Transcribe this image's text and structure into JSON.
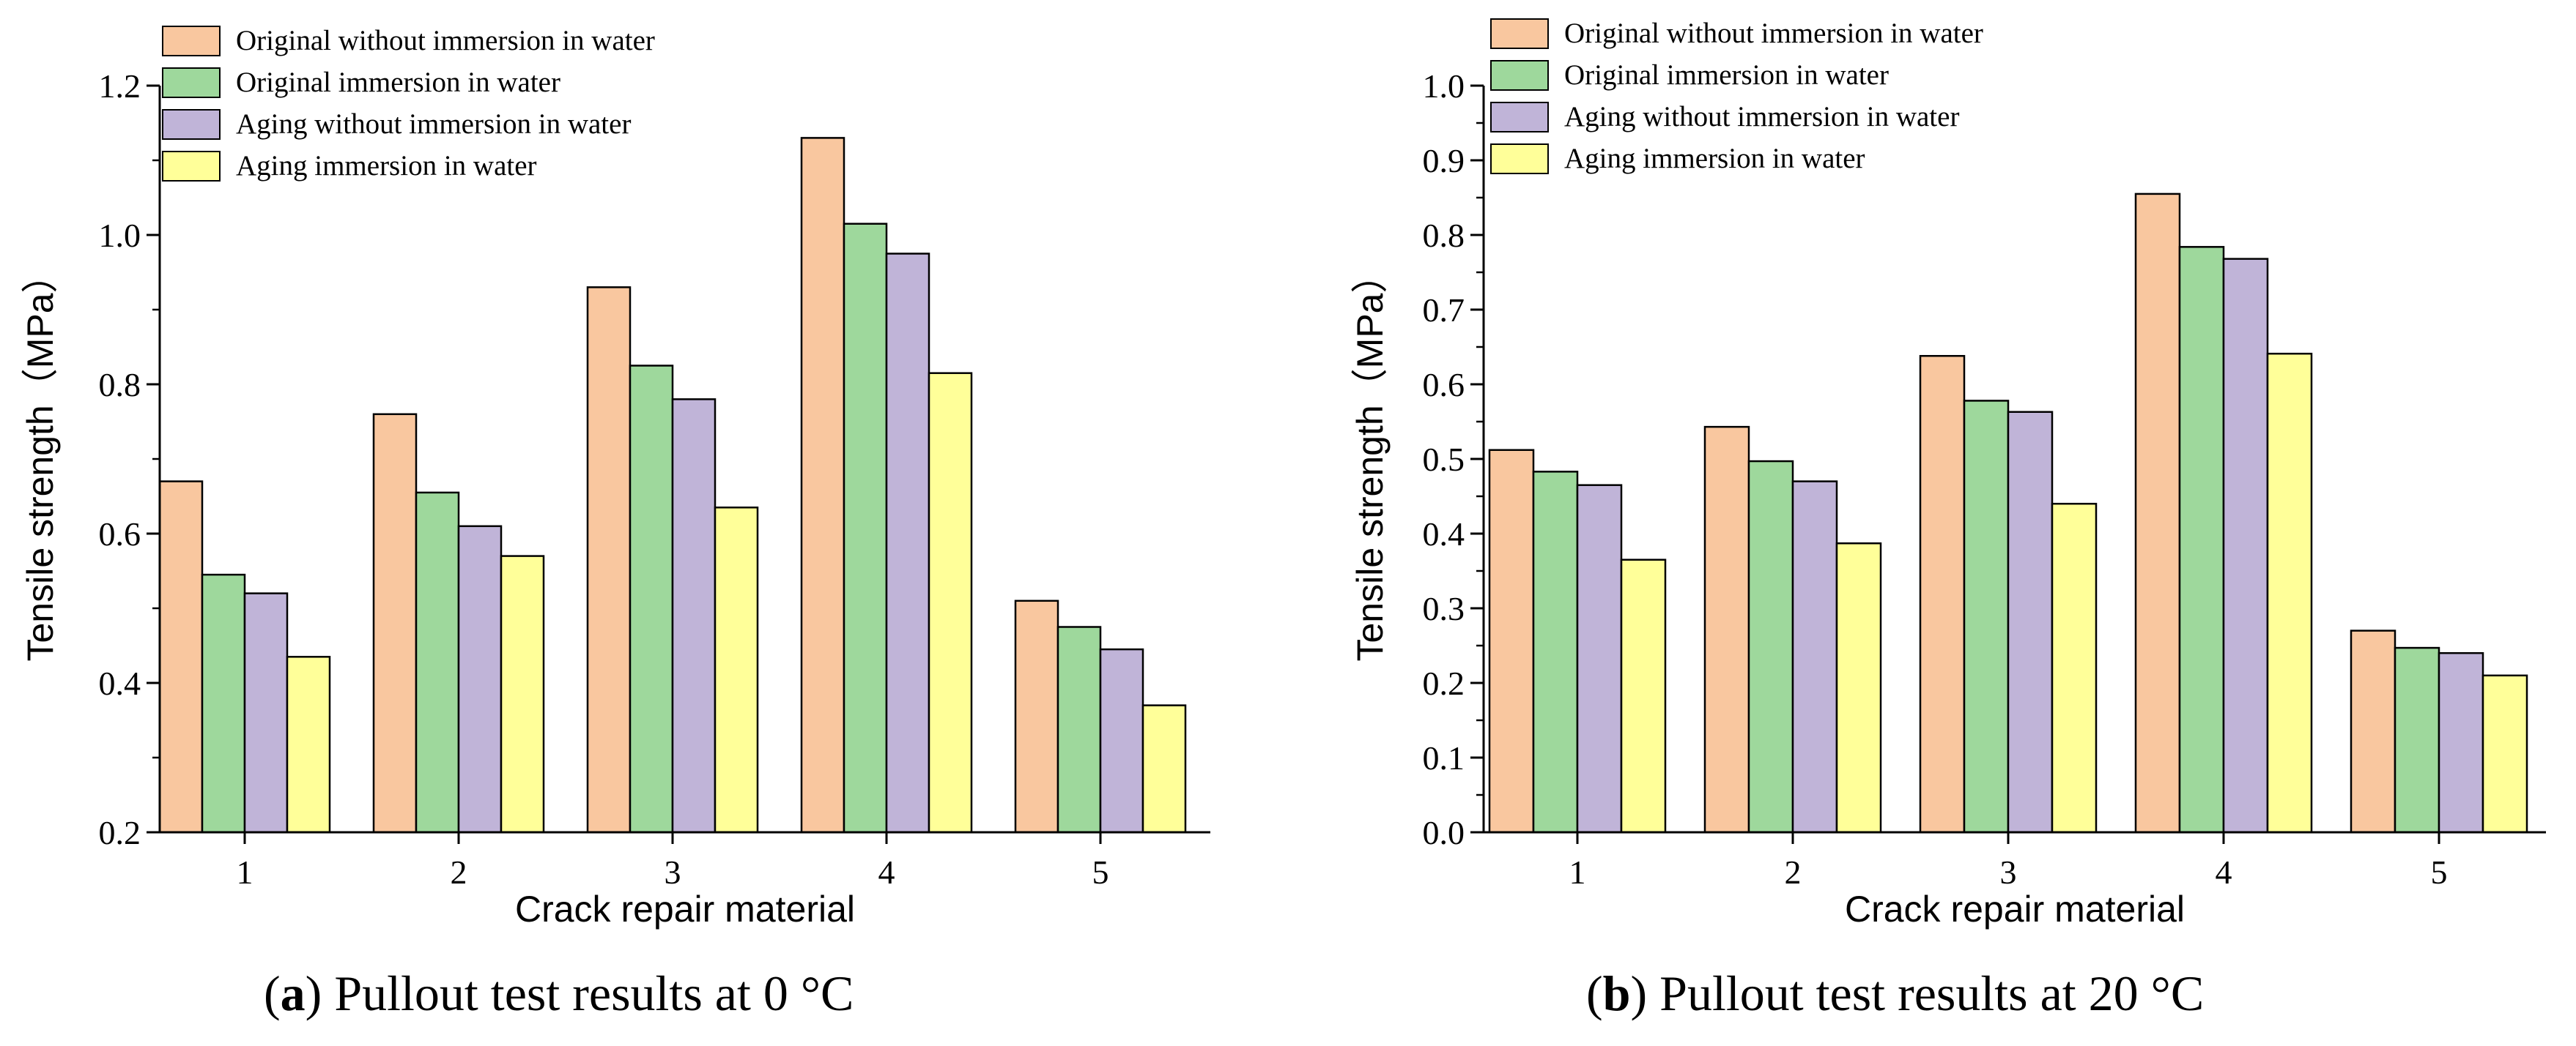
{
  "series_meta": [
    {
      "name": "Original without immersion in water",
      "color": "#F9C79F"
    },
    {
      "name": "Original immersion in water",
      "color": "#9ED89C"
    },
    {
      "name": "Aging without immersion in water",
      "color": "#C0B4D8"
    },
    {
      "name": "Aging immersion in water",
      "color": "#FFFF99"
    }
  ],
  "captions": [
    {
      "letter": "a",
      "text": "Pullout test results at 0 °C"
    },
    {
      "letter": "b",
      "text": "Pullout test results at 20 °C"
    }
  ],
  "chart_data": [
    {
      "type": "bar",
      "title": "",
      "xlabel": "Crack repair material",
      "ylabel": "Tensile strength（MPa）",
      "categories": [
        "1",
        "2",
        "3",
        "4",
        "5"
      ],
      "ylim": [
        0.2,
        1.2
      ],
      "yticks": [
        "0.2",
        "0.4",
        "0.6",
        "0.8",
        "1.0",
        "1.2"
      ],
      "ytick_values": [
        0.2,
        0.4,
        0.6,
        0.8,
        1.0,
        1.2
      ],
      "legend_position": "top-left",
      "series": [
        {
          "name": "Original without immersion in water",
          "values": [
            0.67,
            0.76,
            0.93,
            1.13,
            0.51
          ]
        },
        {
          "name": "Original immersion in water",
          "values": [
            0.545,
            0.655,
            0.825,
            1.015,
            0.475
          ]
        },
        {
          "name": "Aging without immersion in water",
          "values": [
            0.52,
            0.61,
            0.78,
            0.975,
            0.445
          ]
        },
        {
          "name": "Aging immersion in water",
          "values": [
            0.435,
            0.57,
            0.635,
            0.815,
            0.37
          ]
        }
      ]
    },
    {
      "type": "bar",
      "title": "",
      "xlabel": "Crack repair material",
      "ylabel": "Tensile strength（MPa）",
      "categories": [
        "1",
        "2",
        "3",
        "4",
        "5"
      ],
      "ylim": [
        0.0,
        1.0
      ],
      "yticks": [
        "0.0",
        "0.1",
        "0.2",
        "0.3",
        "0.4",
        "0.5",
        "0.6",
        "0.7",
        "0.8",
        "0.9",
        "1.0"
      ],
      "ytick_values": [
        0.0,
        0.1,
        0.2,
        0.3,
        0.4,
        0.5,
        0.6,
        0.7,
        0.8,
        0.9,
        1.0
      ],
      "legend_position": "top-left",
      "series": [
        {
          "name": "Original without immersion in water",
          "values": [
            0.512,
            0.543,
            0.638,
            0.855,
            0.27
          ]
        },
        {
          "name": "Original immersion in water",
          "values": [
            0.483,
            0.497,
            0.578,
            0.784,
            0.247
          ]
        },
        {
          "name": "Aging without immersion in water",
          "values": [
            0.465,
            0.47,
            0.563,
            0.768,
            0.24
          ]
        },
        {
          "name": "Aging immersion in water",
          "values": [
            0.365,
            0.387,
            0.44,
            0.641,
            0.21
          ]
        }
      ]
    }
  ]
}
